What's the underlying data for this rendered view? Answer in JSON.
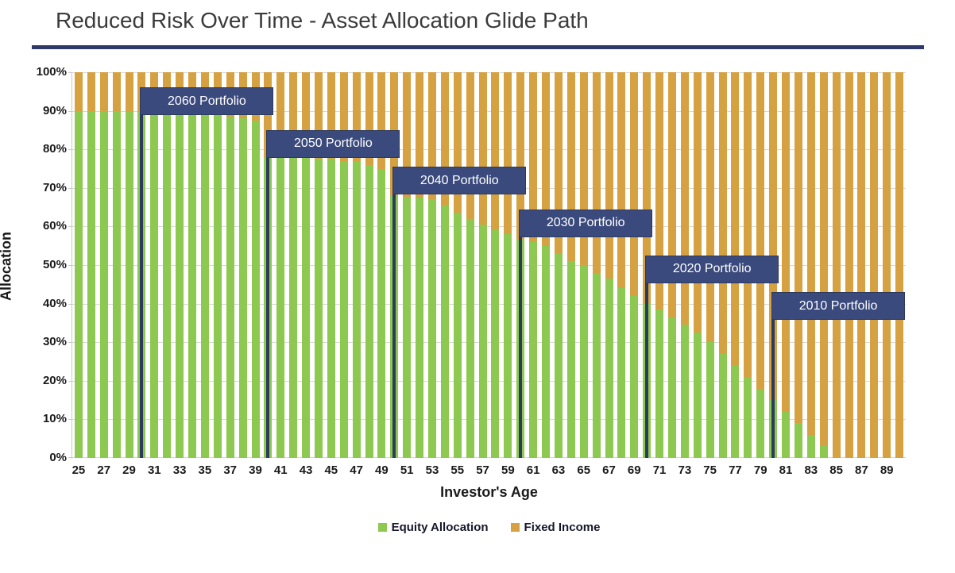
{
  "title": "Reduced Risk Over Time - Asset Allocation Glide Path",
  "colors": {
    "equity": "#8dc950",
    "fixed_income": "#d6a141",
    "portfolio_box": "#3b4a7d",
    "portfolio_box_border": "#2c3a5e",
    "transition_line": "#2d3a60",
    "title_underline": "#2e3a69",
    "gridline": "#d9d9d9",
    "title_text": "#3b3b3b",
    "axis_text": "#1a1a1a",
    "portfolio_label_text": "#ffffff"
  },
  "chart_data": {
    "type": "bar",
    "stacked": true,
    "title": "Reduced Risk Over Time - Asset Allocation Glide Path",
    "xlabel": "Investor's Age",
    "ylabel": "Allocation",
    "ylim": [
      0,
      100
    ],
    "grid": true,
    "legend_position": "bottom-center",
    "y_tick_labels": [
      "0%",
      "10%",
      "20%",
      "30%",
      "40%",
      "50%",
      "60%",
      "70%",
      "80%",
      "90%",
      "100%"
    ],
    "x_tick_labels": [
      25,
      27,
      29,
      31,
      33,
      35,
      37,
      39,
      41,
      43,
      45,
      47,
      49,
      51,
      53,
      55,
      57,
      59,
      61,
      63,
      65,
      67,
      69,
      71,
      73,
      75,
      77,
      79,
      81,
      83,
      85,
      87,
      89
    ],
    "ages": [
      25,
      26,
      27,
      28,
      29,
      30,
      31,
      32,
      33,
      34,
      35,
      36,
      37,
      38,
      39,
      40,
      41,
      42,
      43,
      44,
      45,
      46,
      47,
      48,
      49,
      50,
      51,
      52,
      53,
      54,
      55,
      56,
      57,
      58,
      59,
      60,
      61,
      62,
      63,
      64,
      65,
      66,
      67,
      68,
      69,
      70,
      71,
      72,
      73,
      74,
      75,
      76,
      77,
      78,
      79,
      80,
      81,
      82,
      83,
      84,
      85,
      86,
      87,
      88,
      89,
      90
    ],
    "series": [
      {
        "name": "Equity Allocation",
        "color": "#8dc950",
        "values": [
          90,
          90,
          90,
          90,
          90,
          90,
          90,
          90,
          90,
          90,
          90,
          89,
          88.5,
          88,
          87.5,
          78,
          78,
          78,
          78,
          77.5,
          77.5,
          77,
          77,
          76,
          75,
          68,
          67.5,
          67.5,
          67,
          65.5,
          63.5,
          62,
          60.5,
          59,
          58,
          56.5,
          56,
          55,
          53,
          51,
          50,
          48,
          46.5,
          44,
          42,
          40,
          38.5,
          36.5,
          34.5,
          32.5,
          30,
          27,
          24,
          21,
          18,
          15,
          12,
          9,
          6,
          3,
          0,
          0,
          0,
          0,
          0,
          0
        ]
      },
      {
        "name": "Fixed Income",
        "color": "#d6a141",
        "values": [
          10,
          10,
          10,
          10,
          10,
          10,
          10,
          10,
          10,
          10,
          10,
          11,
          11.5,
          12,
          12.5,
          22,
          22,
          22,
          22,
          22.5,
          22.5,
          23,
          23,
          24,
          25,
          32,
          32.5,
          32.5,
          33,
          34.5,
          36.5,
          38,
          39.5,
          41,
          42,
          43.5,
          44,
          45,
          47,
          49,
          50,
          52,
          53.5,
          56,
          58,
          60,
          61.5,
          63.5,
          65.5,
          67.5,
          70,
          73,
          76,
          79,
          82,
          85,
          88,
          91,
          94,
          97,
          100,
          100,
          100,
          100,
          100,
          100
        ]
      }
    ],
    "annotations": [
      {
        "label": "2060 Portfolio",
        "transition_age": 30,
        "box_top_allocation": 96
      },
      {
        "label": "2050 Portfolio",
        "transition_age": 40,
        "box_top_allocation": 85
      },
      {
        "label": "2040 Portfolio",
        "transition_age": 50,
        "box_top_allocation": 75.5
      },
      {
        "label": "2030 Portfolio",
        "transition_age": 60,
        "box_top_allocation": 64.5
      },
      {
        "label": "2020 Portfolio",
        "transition_age": 70,
        "box_top_allocation": 52.5
      },
      {
        "label": "2010 Portfolio",
        "transition_age": 80,
        "box_top_allocation": 43
      }
    ],
    "legend": [
      "Equity Allocation",
      "Fixed Income"
    ]
  }
}
